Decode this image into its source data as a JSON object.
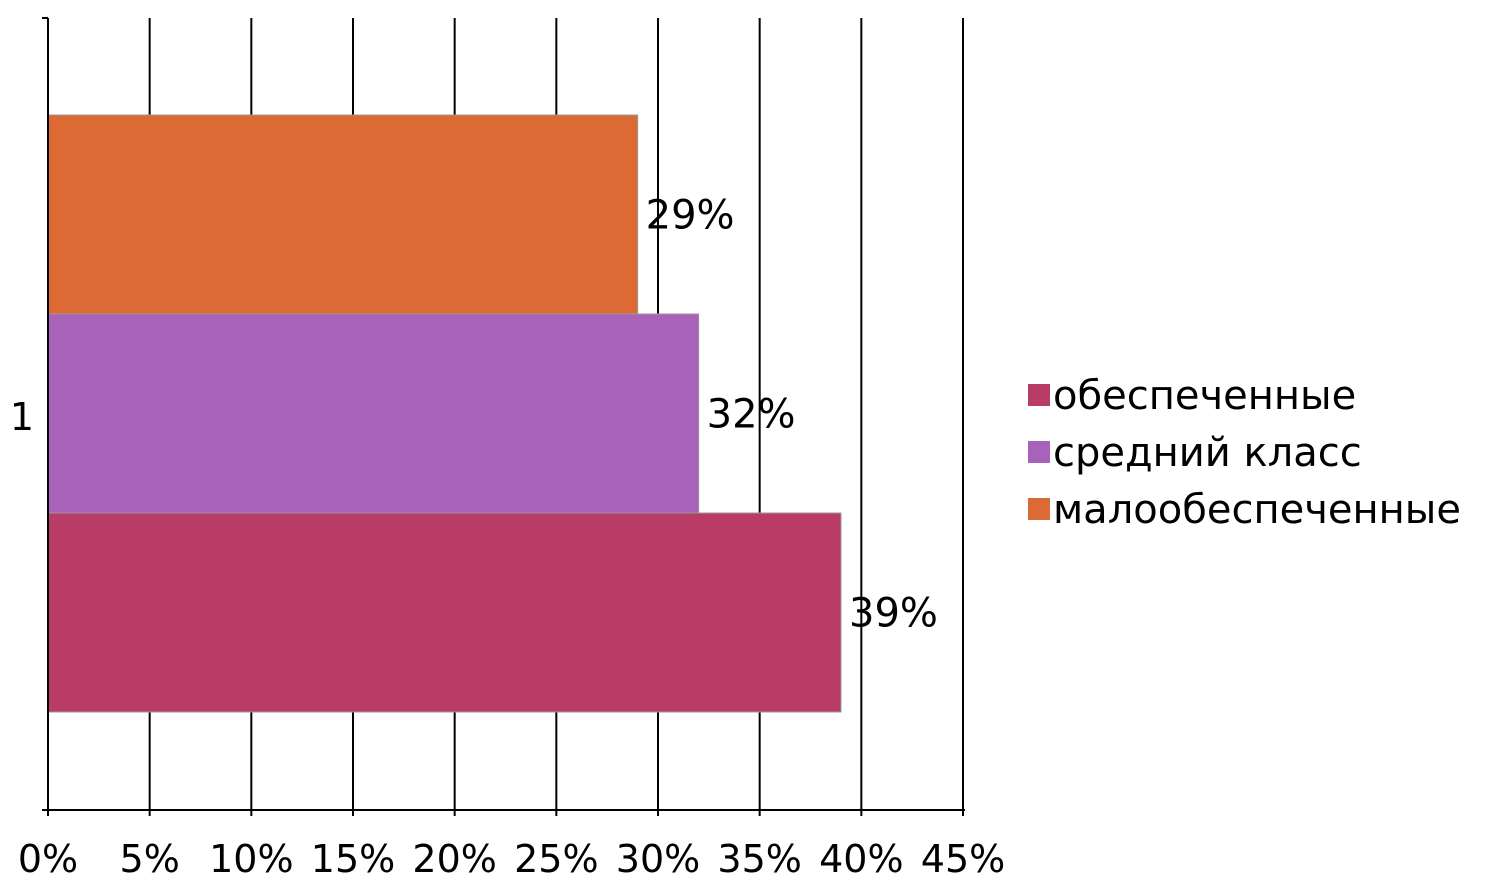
{
  "chart_data": {
    "type": "bar",
    "orientation": "horizontal",
    "categories": [
      "1"
    ],
    "series": [
      {
        "name": "обеспеченные",
        "values": [
          39
        ],
        "value_label": "39%",
        "color": "#b83c65"
      },
      {
        "name": "средний класс",
        "values": [
          32
        ],
        "value_label": "32%",
        "color": "#a862b9"
      },
      {
        "name": "малообеспеченные",
        "values": [
          29
        ],
        "value_label": "29%",
        "color": "#dc6a35"
      }
    ],
    "xlim": [
      0,
      45
    ],
    "x_ticks": [
      0,
      5,
      10,
      15,
      20,
      25,
      30,
      35,
      40,
      45
    ],
    "x_tick_labels": [
      "0%",
      "5%",
      "10%",
      "15%",
      "20%",
      "25%",
      "30%",
      "35%",
      "40%",
      "45%"
    ],
    "grid": "vertical",
    "legend_position": "right",
    "title": "",
    "xlabel": "",
    "ylabel": ""
  }
}
